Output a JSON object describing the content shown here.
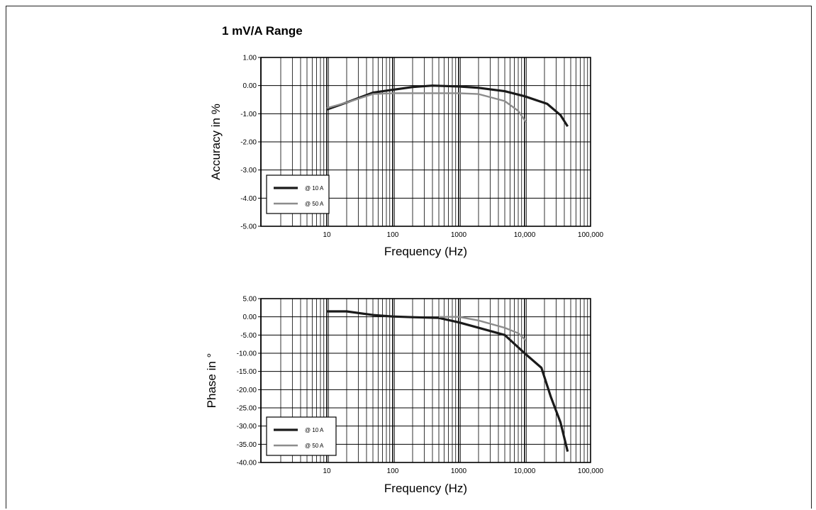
{
  "page": {
    "title": "1 mV/A Range"
  },
  "colors": {
    "series_10A": "#1a1a1a",
    "series_50A": "#8c8c8c",
    "grid": "#000000"
  },
  "chart_data": [
    {
      "type": "line",
      "title": "",
      "xlabel": "Frequency (Hz)",
      "ylabel": "Accuracy in %",
      "xscale": "log",
      "xlim": [
        1,
        100000
      ],
      "ylim": [
        -5,
        1
      ],
      "x_tick_labels": [
        "10",
        "100",
        "1000",
        "10,000",
        "100,000"
      ],
      "x_tick_values": [
        10,
        100,
        1000,
        10000,
        100000
      ],
      "y_tick_labels": [
        "1.00",
        "0.00",
        "-1.00",
        "-2.00",
        "-3.00",
        "-4.00",
        "-5.00"
      ],
      "y_tick_values": [
        1,
        0,
        -1,
        -2,
        -3,
        -4,
        -5
      ],
      "grid": true,
      "legend_position": "bottom-left",
      "series": [
        {
          "name": "@ 10 A",
          "x": [
            10,
            20,
            50,
            100,
            200,
            400,
            1000,
            2000,
            5000,
            10000,
            22000,
            35000,
            45000
          ],
          "y": [
            -0.85,
            -0.6,
            -0.25,
            -0.15,
            -0.05,
            0.0,
            -0.03,
            -0.08,
            -0.2,
            -0.38,
            -0.65,
            -1.05,
            -1.45
          ]
        },
        {
          "name": "@ 50 A",
          "x": [
            10,
            20,
            50,
            100,
            200,
            400,
            1000,
            2000,
            5000,
            8000,
            10500
          ],
          "y": [
            -0.8,
            -0.6,
            -0.3,
            -0.27,
            -0.27,
            -0.27,
            -0.27,
            -0.3,
            -0.55,
            -0.9,
            -1.3
          ]
        }
      ]
    },
    {
      "type": "line",
      "title": "",
      "xlabel": "Frequency (Hz)",
      "ylabel": "Phase in °",
      "xscale": "log",
      "xlim": [
        1,
        100000
      ],
      "ylim": [
        -40,
        5
      ],
      "x_tick_labels": [
        "10",
        "100",
        "1000",
        "10,000",
        "100,000"
      ],
      "x_tick_values": [
        10,
        100,
        1000,
        10000,
        100000
      ],
      "y_tick_labels": [
        "5.00",
        "0.00",
        "-5.00",
        "-10.00",
        "-15.00",
        "-20.00",
        "-25.00",
        "-30.00",
        "-35.00",
        "-40.00"
      ],
      "y_tick_values": [
        5,
        0,
        -5,
        -10,
        -15,
        -20,
        -25,
        -30,
        -35,
        -40
      ],
      "grid": true,
      "legend_position": "bottom-left",
      "series": [
        {
          "name": "@ 10 A",
          "x": [
            10,
            20,
            50,
            100,
            200,
            500,
            1000,
            2000,
            5000,
            10000,
            18000,
            25000,
            35000,
            45000
          ],
          "y": [
            1.5,
            1.5,
            0.5,
            0.1,
            -0.1,
            -0.3,
            -1.5,
            -3.0,
            -5.0,
            -10.0,
            -14.0,
            -22.0,
            -29.0,
            -37.0
          ]
        },
        {
          "name": "@ 50 A",
          "x": [
            500,
            1000,
            2000,
            5000,
            8000,
            10500
          ],
          "y": [
            0.0,
            0.0,
            -1.0,
            -3.0,
            -4.5,
            -6.5
          ]
        }
      ]
    }
  ]
}
